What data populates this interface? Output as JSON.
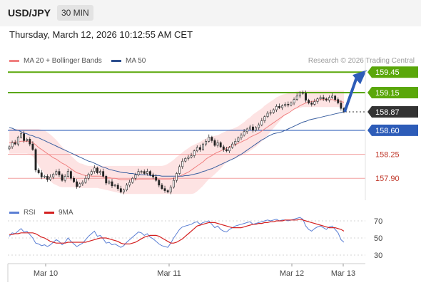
{
  "header": {
    "symbol": "USD/JPY",
    "timeframe": "30 MIN",
    "date": "Thursday, March 12, 2026 10:12:55 AM CET"
  },
  "legend": {
    "ma20": "MA 20 + Bollinger Bands",
    "ma50": "MA 50",
    "rsi": "RSI",
    "ma9": "9MA"
  },
  "credit": "Research © 2026 Trading Central",
  "colors": {
    "up": "#3a8a1a",
    "down": "#cc2222",
    "ma20": "#f08080",
    "ma50": "#3a5fa0",
    "band": "#fde3e3",
    "resistance": "#5aa70a",
    "pivot": "#2d5cb8",
    "support": "#f2a0a0",
    "arrow": "#2d5cb8",
    "rsi": "#5b7fd4",
    "rsi_ma": "#d42020"
  },
  "chart_data": [
    {
      "type": "candlestick",
      "title": "",
      "x_labels": [
        "Mar 10",
        "Mar 11",
        "Mar 12",
        "Mar 13"
      ],
      "ylim": [
        157.58,
        159.66
      ],
      "levels": [
        {
          "value": 159.45,
          "label": "159.45",
          "kind": "resistance"
        },
        {
          "value": 159.15,
          "label": "159.15",
          "kind": "resistance"
        },
        {
          "value": 158.87,
          "label": "158.87",
          "kind": "last"
        },
        {
          "value": 158.6,
          "label": "158.60",
          "kind": "pivot"
        },
        {
          "value": 158.25,
          "label": "158.25",
          "kind": "support"
        },
        {
          "value": 157.9,
          "label": "157.90",
          "kind": "support"
        }
      ],
      "close": [
        158.36,
        158.42,
        158.4,
        158.5,
        158.55,
        158.45,
        158.47,
        158.4,
        158.32,
        158.02,
        157.98,
        157.92,
        157.93,
        157.88,
        157.92,
        157.96,
        158.0,
        157.95,
        157.87,
        157.93,
        158.0,
        157.9,
        157.85,
        157.78,
        157.82,
        157.84,
        157.9,
        157.96,
        158.0,
        158.05,
        157.98,
        158.0,
        157.93,
        157.83,
        157.85,
        157.79,
        157.8,
        157.75,
        157.7,
        157.73,
        157.8,
        157.84,
        157.9,
        157.95,
        158.0,
        158.0,
        157.97,
        158.0,
        157.95,
        157.92,
        157.87,
        157.8,
        157.75,
        157.72,
        157.7,
        157.77,
        157.87,
        157.97,
        158.07,
        158.15,
        158.19,
        158.21,
        158.23,
        158.3,
        158.35,
        158.32,
        158.4,
        158.44,
        158.5,
        158.45,
        158.38,
        158.42,
        158.36,
        158.32,
        158.3,
        158.35,
        158.4,
        158.44,
        158.49,
        158.53,
        158.58,
        158.62,
        158.65,
        158.6,
        158.64,
        158.68,
        158.74,
        158.8,
        158.85,
        158.86,
        158.9,
        158.95,
        158.93,
        158.96,
        158.98,
        158.97,
        159.0,
        159.05,
        159.1,
        159.15,
        159.14,
        159.04,
        159.0,
        158.98,
        159.02,
        159.06,
        159.08,
        159.06,
        159.04,
        159.08,
        159.1,
        159.05,
        159.0,
        158.92,
        158.87
      ],
      "ma20": [
        158.42,
        158.42,
        158.43,
        158.43,
        158.44,
        158.44,
        158.44,
        158.44,
        158.42,
        158.39,
        158.35,
        158.32,
        158.29,
        158.26,
        158.23,
        158.2,
        158.18,
        158.15,
        158.12,
        158.1,
        158.07,
        158.04,
        158.01,
        157.98,
        157.97,
        157.95,
        157.94,
        157.94,
        157.93,
        157.93,
        157.93,
        157.93,
        157.92,
        157.91,
        157.91,
        157.9,
        157.9,
        157.89,
        157.88,
        157.88,
        157.88,
        157.88,
        157.88,
        157.88,
        157.89,
        157.89,
        157.89,
        157.89,
        157.89,
        157.89,
        157.89,
        157.89,
        157.89,
        157.89,
        157.89,
        157.89,
        157.9,
        157.91,
        157.93,
        157.95,
        157.97,
        157.99,
        158.02,
        158.05,
        158.08,
        158.11,
        158.14,
        158.18,
        158.21,
        158.23,
        158.26,
        158.28,
        158.3,
        158.32,
        158.34,
        158.36,
        158.38,
        158.39,
        158.41,
        158.43,
        158.45,
        158.47,
        158.5,
        158.52,
        158.54,
        158.56,
        158.59,
        158.62,
        158.65,
        158.68,
        158.71,
        158.74,
        158.77,
        158.8,
        158.83,
        158.85,
        158.88,
        158.91,
        158.93,
        158.96,
        158.98,
        159.0,
        159.01,
        159.02,
        159.03,
        159.04,
        159.05,
        159.05,
        159.05,
        159.05,
        159.05,
        159.04,
        159.03,
        159.02,
        159.01
      ],
      "bb_upper": [
        158.62,
        158.62,
        158.62,
        158.62,
        158.62,
        158.62,
        158.62,
        158.62,
        158.62,
        158.62,
        158.62,
        158.61,
        158.6,
        158.57,
        158.54,
        158.5,
        158.46,
        158.41,
        158.36,
        158.32,
        158.28,
        158.23,
        158.19,
        158.15,
        158.12,
        158.11,
        158.09,
        158.08,
        158.08,
        158.08,
        158.08,
        158.08,
        158.08,
        158.08,
        158.08,
        158.08,
        158.08,
        158.08,
        158.08,
        158.08,
        158.08,
        158.08,
        158.08,
        158.08,
        158.08,
        158.08,
        158.08,
        158.08,
        158.08,
        158.08,
        158.08,
        158.08,
        158.08,
        158.09,
        158.11,
        158.14,
        158.17,
        158.21,
        158.24,
        158.28,
        158.31,
        158.34,
        158.37,
        158.39,
        158.41,
        158.43,
        158.46,
        158.48,
        158.5,
        158.51,
        158.52,
        158.53,
        158.55,
        158.57,
        158.59,
        158.61,
        158.62,
        158.64,
        158.66,
        158.69,
        158.72,
        158.76,
        158.79,
        158.83,
        158.86,
        158.89,
        158.92,
        158.96,
        158.99,
        159.02,
        159.05,
        159.08,
        159.1,
        159.12,
        159.13,
        159.14,
        159.15,
        159.16,
        159.17,
        159.18,
        159.18,
        159.18,
        159.18,
        159.18,
        159.18,
        159.18,
        159.18,
        159.18,
        159.18,
        159.18,
        159.18,
        159.18,
        159.18,
        159.18,
        159.18
      ],
      "bb_lower": [
        158.26,
        158.26,
        158.26,
        158.26,
        158.26,
        158.26,
        158.26,
        158.25,
        158.22,
        158.16,
        158.09,
        158.02,
        157.96,
        157.91,
        157.86,
        157.82,
        157.8,
        157.78,
        157.77,
        157.77,
        157.77,
        157.77,
        157.77,
        157.76,
        157.76,
        157.76,
        157.76,
        157.76,
        157.76,
        157.76,
        157.76,
        157.75,
        157.74,
        157.73,
        157.72,
        157.71,
        157.7,
        157.69,
        157.68,
        157.67,
        157.67,
        157.67,
        157.67,
        157.67,
        157.67,
        157.67,
        157.67,
        157.67,
        157.67,
        157.67,
        157.67,
        157.67,
        157.67,
        157.67,
        157.67,
        157.67,
        157.67,
        157.67,
        157.67,
        157.67,
        157.67,
        157.67,
        157.67,
        157.68,
        157.71,
        157.75,
        157.79,
        157.84,
        157.89,
        157.92,
        157.96,
        158.0,
        158.04,
        158.09,
        158.13,
        158.16,
        158.18,
        158.19,
        158.21,
        158.23,
        158.25,
        158.27,
        158.3,
        158.33,
        158.36,
        158.4,
        158.44,
        158.48,
        158.53,
        158.58,
        158.63,
        158.68,
        158.73,
        158.78,
        158.83,
        158.86,
        158.89,
        158.91,
        158.92,
        158.93,
        158.94,
        158.94,
        158.94,
        158.94,
        158.94,
        158.94,
        158.94,
        158.94,
        158.94,
        158.94,
        158.94,
        158.94,
        158.94,
        158.94,
        158.94
      ],
      "ma50": [
        158.64,
        158.63,
        158.61,
        158.6,
        158.58,
        158.56,
        158.55,
        158.53,
        158.52,
        158.5,
        158.49,
        158.47,
        158.45,
        158.43,
        158.41,
        158.39,
        158.37,
        158.35,
        158.33,
        158.31,
        158.29,
        158.27,
        158.25,
        158.23,
        158.21,
        158.19,
        158.17,
        158.15,
        158.14,
        158.12,
        158.1,
        158.08,
        158.06,
        158.05,
        158.03,
        158.02,
        158.01,
        158.0,
        157.99,
        157.98,
        157.98,
        157.97,
        157.97,
        157.96,
        157.96,
        157.95,
        157.95,
        157.95,
        157.94,
        157.94,
        157.94,
        157.94,
        157.93,
        157.93,
        157.93,
        157.93,
        157.93,
        157.93,
        157.93,
        157.93,
        157.94,
        157.94,
        157.95,
        157.96,
        157.97,
        157.98,
        158.0,
        158.01,
        158.03,
        158.04,
        158.06,
        158.08,
        158.1,
        158.12,
        158.14,
        158.16,
        158.18,
        158.2,
        158.23,
        158.25,
        158.28,
        158.31,
        158.34,
        158.37,
        158.4,
        158.43,
        158.46,
        158.48,
        158.51,
        158.53,
        158.55,
        158.56,
        158.57,
        158.58,
        158.6,
        158.62,
        158.64,
        158.66,
        158.68,
        158.7,
        158.72,
        158.73,
        158.75,
        158.76,
        158.77,
        158.78,
        158.79,
        158.8,
        158.81,
        158.82,
        158.83,
        158.84,
        158.85,
        158.86,
        158.87
      ],
      "projection": {
        "from": 158.87,
        "to": 159.45
      }
    },
    {
      "type": "line",
      "title": "",
      "x_labels": [
        "Mar 10",
        "Mar 11",
        "Mar 12",
        "Mar 13"
      ],
      "yticks": [
        70,
        50,
        30
      ],
      "ylim": [
        20,
        80
      ],
      "series": [
        {
          "name": "RSI",
          "values": [
            52,
            56,
            55,
            58,
            61,
            57,
            58,
            54,
            50,
            44,
            43,
            41,
            42,
            40,
            42,
            45,
            48,
            46,
            42,
            45,
            50,
            46,
            43,
            40,
            42,
            44,
            48,
            52,
            55,
            58,
            52,
            53,
            49,
            44,
            45,
            42,
            43,
            41,
            39,
            41,
            45,
            48,
            51,
            54,
            57,
            56,
            53,
            55,
            51,
            49,
            46,
            43,
            41,
            40,
            39,
            44,
            50,
            55,
            60,
            63,
            64,
            65,
            66,
            68,
            69,
            66,
            68,
            69,
            70,
            66,
            62,
            64,
            60,
            58,
            57,
            60,
            62,
            64,
            65,
            66,
            67,
            68,
            69,
            66,
            67,
            68,
            69,
            70,
            71,
            70,
            71,
            72,
            70,
            71,
            71,
            70,
            71,
            72,
            73,
            74,
            72,
            64,
            60,
            58,
            61,
            63,
            64,
            62,
            60,
            63,
            64,
            60,
            56,
            48,
            45
          ]
        },
        {
          "name": "9MA",
          "values": [
            54,
            54,
            55,
            55,
            56,
            56,
            56,
            56,
            56,
            55,
            53,
            51,
            50,
            48,
            46,
            45,
            44,
            44,
            44,
            44,
            45,
            45,
            45,
            45,
            45,
            45,
            45,
            46,
            47,
            48,
            49,
            50,
            50,
            50,
            49,
            48,
            47,
            46,
            44,
            43,
            43,
            43,
            44,
            45,
            47,
            49,
            51,
            52,
            53,
            53,
            53,
            52,
            50,
            48,
            46,
            44,
            44,
            45,
            47,
            49,
            52,
            55,
            58,
            61,
            64,
            65,
            66,
            67,
            68,
            68,
            68,
            67,
            66,
            65,
            64,
            63,
            62,
            62,
            62,
            62,
            63,
            64,
            65,
            66,
            66,
            67,
            67,
            68,
            68,
            69,
            69,
            70,
            70,
            70,
            71,
            71,
            71,
            71,
            71,
            72,
            71,
            70,
            69,
            68,
            67,
            66,
            65,
            64,
            63,
            62,
            62,
            62,
            61,
            60,
            58
          ]
        }
      ]
    }
  ]
}
